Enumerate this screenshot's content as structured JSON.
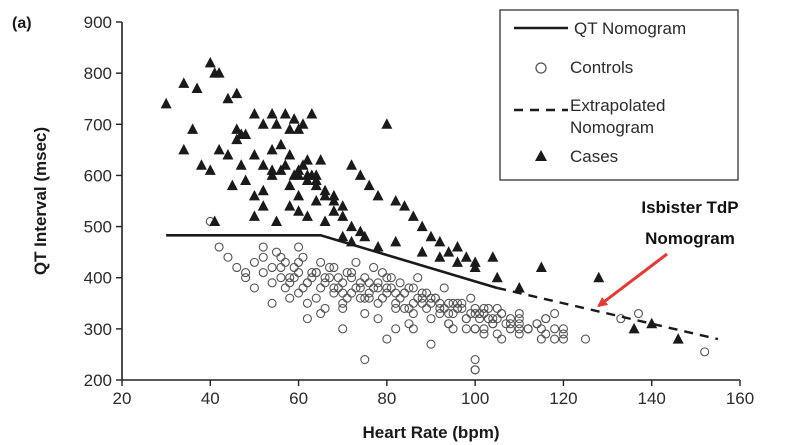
{
  "chart_data": {
    "type": "scatter",
    "panel_label": "(a)",
    "xlabel": "Heart Rate (bpm)",
    "ylabel": "QT Interval (msec)",
    "xlim": [
      20,
      160
    ],
    "ylim": [
      200,
      900
    ],
    "xticks": [
      20,
      40,
      60,
      80,
      100,
      120,
      140,
      160
    ],
    "yticks": [
      200,
      300,
      400,
      500,
      600,
      700,
      800,
      900
    ],
    "grid": false,
    "legend": {
      "placement": "top-right",
      "entries": [
        {
          "key": "nomogram",
          "label": "QT Nomogram",
          "marker": "solid-line"
        },
        {
          "key": "controls",
          "label": "Controls",
          "marker": "open-circle"
        },
        {
          "key": "extrapolated",
          "label_lines": [
            "Extrapolated",
            "Nomogram"
          ],
          "marker": "dashed-line"
        },
        {
          "key": "cases",
          "label": "Cases",
          "marker": "filled-triangle"
        }
      ]
    },
    "annotation": {
      "lines": [
        "Isbister TdP",
        "Nomogram"
      ],
      "color": "#e53935",
      "arrow_target": {
        "x": 128,
        "y": 345
      }
    },
    "colors": {
      "marks": "#1a1a1a",
      "controls": "#555555",
      "annotation": "#e53935"
    },
    "nomogram_line": {
      "x": [
        30,
        65,
        105
      ],
      "y": [
        483,
        483,
        380
      ]
    },
    "extrapolated_line": {
      "x": [
        105,
        155
      ],
      "y": [
        380,
        280
      ]
    },
    "cases": {
      "x": [
        30,
        34,
        37,
        40,
        41,
        42,
        44,
        46,
        46,
        47,
        34,
        36,
        38,
        40,
        42,
        44,
        46,
        47,
        48,
        50,
        52,
        54,
        55,
        57,
        58,
        59,
        60,
        61,
        63,
        65,
        50,
        52,
        54,
        56,
        58,
        59,
        60,
        61,
        62,
        63,
        64,
        45,
        48,
        50,
        52,
        54,
        56,
        58,
        60,
        62,
        64,
        66,
        68,
        50,
        52,
        55,
        58,
        60,
        62,
        64,
        66,
        68,
        70,
        72,
        74,
        54,
        57,
        60,
        62,
        64,
        66,
        68,
        70,
        72,
        74,
        76,
        78,
        80,
        82,
        84,
        86,
        88,
        90,
        92,
        94,
        96,
        98,
        100,
        104,
        41,
        70,
        72,
        75,
        78,
        82,
        88,
        92,
        96,
        100,
        105,
        110,
        115,
        128,
        136,
        140,
        146
      ],
      "y": [
        740,
        780,
        770,
        820,
        800,
        800,
        750,
        760,
        690,
        680,
        650,
        690,
        620,
        610,
        650,
        640,
        670,
        620,
        680,
        720,
        700,
        720,
        700,
        720,
        690,
        710,
        690,
        700,
        720,
        630,
        640,
        620,
        650,
        660,
        640,
        600,
        610,
        620,
        630,
        600,
        600,
        580,
        590,
        560,
        570,
        600,
        610,
        580,
        560,
        600,
        590,
        570,
        560,
        520,
        540,
        510,
        540,
        530,
        520,
        550,
        510,
        530,
        520,
        500,
        490,
        610,
        620,
        600,
        590,
        580,
        560,
        550,
        540,
        620,
        600,
        580,
        560,
        700,
        550,
        540,
        520,
        500,
        480,
        470,
        450,
        460,
        440,
        430,
        440,
        510,
        480,
        470,
        480,
        460,
        470,
        450,
        440,
        430,
        420,
        400,
        380,
        420,
        400,
        300,
        310,
        280
      ]
    },
    "controls": {
      "x": [
        40,
        42,
        44,
        46,
        48,
        50,
        52,
        54,
        56,
        57,
        58,
        59,
        60,
        61,
        62,
        63,
        64,
        65,
        66,
        67,
        68,
        69,
        70,
        71,
        72,
        73,
        74,
        75,
        76,
        77,
        78,
        79,
        80,
        81,
        82,
        83,
        84,
        85,
        86,
        87,
        88,
        89,
        90,
        91,
        92,
        93,
        94,
        95,
        96,
        97,
        98,
        99,
        100,
        101,
        102,
        103,
        104,
        105,
        106,
        107,
        108,
        110,
        112,
        114,
        116,
        118,
        120,
        125,
        133,
        137,
        152,
        48,
        50,
        52,
        54,
        56,
        58,
        60,
        62,
        64,
        66,
        68,
        70,
        72,
        74,
        76,
        78,
        80,
        82,
        84,
        86,
        88,
        90,
        92,
        94,
        96,
        98,
        100,
        102,
        104,
        106,
        108,
        110,
        112,
        114,
        116,
        118,
        120,
        55,
        57,
        59,
        61,
        63,
        65,
        67,
        69,
        71,
        73,
        75,
        77,
        79,
        81,
        83,
        85,
        87,
        89,
        91,
        93,
        95,
        97,
        99,
        101,
        103,
        105,
        52,
        56,
        60,
        64,
        68,
        72,
        76,
        80,
        84,
        88,
        92,
        96,
        100,
        104,
        108,
        112,
        116,
        120,
        58,
        62,
        66,
        70,
        74,
        78,
        82,
        86,
        90,
        94,
        98,
        102,
        106,
        110,
        54,
        62,
        70,
        78,
        86,
        94,
        102,
        110,
        118,
        65,
        75,
        85,
        95,
        105,
        115,
        60,
        70,
        80,
        90,
        100,
        110,
        75,
        82,
        100,
        100,
        100,
        115
      ],
      "y": [
        510,
        460,
        440,
        420,
        410,
        430,
        440,
        420,
        400,
        380,
        390,
        400,
        410,
        380,
        390,
        400,
        410,
        380,
        390,
        400,
        370,
        380,
        390,
        360,
        370,
        380,
        390,
        360,
        370,
        380,
        350,
        360,
        370,
        380,
        350,
        360,
        370,
        340,
        350,
        360,
        370,
        340,
        350,
        360,
        330,
        340,
        350,
        330,
        340,
        350,
        320,
        330,
        340,
        320,
        330,
        340,
        310,
        320,
        330,
        310,
        320,
        330,
        300,
        310,
        320,
        330,
        300,
        280,
        320,
        330,
        255,
        400,
        380,
        410,
        390,
        420,
        400,
        370,
        390,
        360,
        400,
        380,
        350,
        410,
        380,
        360,
        390,
        400,
        370,
        340,
        380,
        350,
        360,
        340,
        330,
        350,
        320,
        300,
        340,
        310,
        330,
        300,
        320,
        300,
        310,
        320,
        300,
        290,
        450,
        430,
        420,
        440,
        410,
        430,
        420,
        400,
        410,
        430,
        400,
        420,
        410,
        400,
        390,
        380,
        400,
        370,
        360,
        380,
        350,
        340,
        360,
        330,
        320,
        340,
        460,
        440,
        430,
        410,
        420,
        400,
        390,
        380,
        370,
        360,
        350,
        340,
        330,
        320,
        310,
        300,
        290,
        280,
        360,
        350,
        340,
        370,
        360,
        380,
        340,
        330,
        320,
        310,
        300,
        290,
        280,
        300,
        350,
        320,
        340,
        320,
        300,
        310,
        300,
        290,
        280,
        330,
        330,
        310,
        300,
        290,
        280,
        460,
        300,
        280,
        270,
        300,
        310,
        240,
        300,
        240,
        220,
        220,
        300
      ]
    }
  }
}
